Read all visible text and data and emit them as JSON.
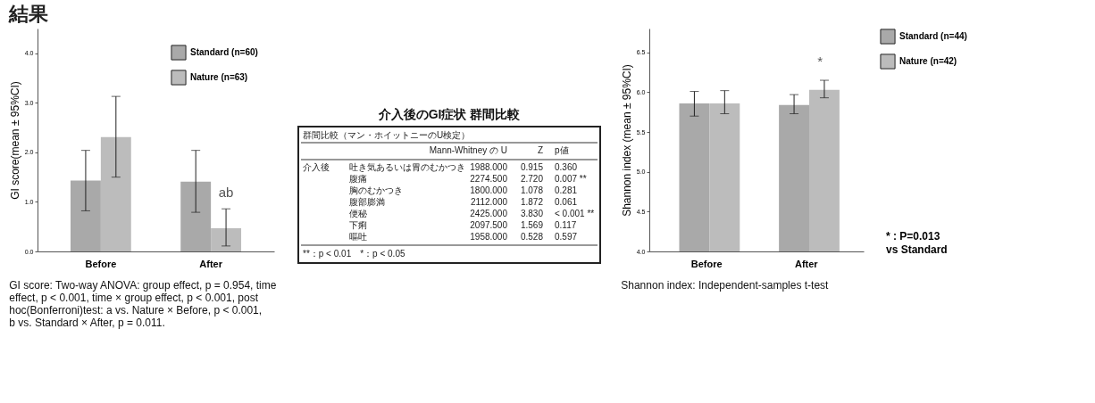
{
  "chart_data": [
    {
      "type": "bar",
      "title": "結果",
      "ylabel": "GI score(mean ± 95%CI)",
      "categories": [
        "Before",
        "After"
      ],
      "series": [
        {
          "name": "Standard (n=60)",
          "color": "#a9a9a9",
          "values": [
            1.43,
            1.41
          ],
          "errors": [
            [
              0.82,
              2.04
            ],
            [
              0.79,
              2.04
            ]
          ]
        },
        {
          "name": "Nature (n=63)",
          "color": "#bcbcbc",
          "values": [
            2.31,
            0.47
          ],
          "errors": [
            [
              1.5,
              3.13
            ],
            [
              0.11,
              0.86
            ]
          ]
        }
      ],
      "ylim": [
        0,
        4.5
      ],
      "yticks": [
        {
          "value": 0,
          "label": "0.0"
        },
        {
          "value": 1,
          "label": "1.0"
        },
        {
          "value": 2,
          "label": "2.0"
        },
        {
          "value": 3,
          "label": "3.0"
        },
        {
          "value": 4,
          "label": "4.0"
        }
      ],
      "legend": "top right",
      "grid": false,
      "annotations": [
        {
          "text": "ab",
          "x": "After",
          "y": 0.86
        },
        "GI score: Two-way ANOVA: group effect, p = 0.954, time effect, p < 0.001, time × group effect, p < 0.001, post hoc(Bonferroni)test: a vs. Nature × Before, p < 0.001, b vs. Standard × After, p = 0.011."
      ]
    },
    {
      "type": "other",
      "title": "介入後のGI症状 群間比較",
      "annotations": [
        "群間比較（マン・ホイットニーのU検定）",
        "Mann-Whitney の U",
        "Z",
        "p値",
        "介入後",
        "吐き気あるいは胃のむかつき",
        "1988.000",
        "0.915",
        "0.360",
        "腹痛",
        "2274.500",
        "2.720",
        "0.007 **",
        "胸のむかつき",
        "1800.000",
        "1.078",
        "0.281",
        "腹部膨満",
        "2112.000",
        "1.872",
        "0.061",
        "便秘",
        "2425.000",
        "3.830",
        "< 0.001 **",
        "下痢",
        "2097.500",
        "1.569",
        "0.117",
        "嘔吐",
        "1958.000",
        "0.528",
        "0.597",
        "**：p < 0.01　*：p < 0.05"
      ]
    },
    {
      "type": "bar",
      "ylabel": "Shannon index (mean ± 95%CI)",
      "categories": [
        "Before",
        "After"
      ],
      "series": [
        {
          "name": "Standard (n=44)",
          "color": "#a9a9a9",
          "values": [
            5.86,
            5.84
          ],
          "errors": [
            [
              5.7,
              6.01
            ],
            [
              5.73,
              5.97
            ]
          ]
        },
        {
          "name": "Nature (n=42)",
          "color": "#bcbcbc",
          "values": [
            5.86,
            6.03
          ],
          "errors": [
            [
              5.73,
              6.02
            ],
            [
              5.93,
              6.15
            ]
          ]
        }
      ],
      "ylim": [
        4.0,
        6.8
      ],
      "yticks": [
        {
          "value": 4.0,
          "label": "4.0"
        },
        {
          "value": 4.5,
          "label": "4.5"
        },
        {
          "value": 5.0,
          "label": "5.0"
        },
        {
          "value": 5.5,
          "label": "5.5"
        },
        {
          "value": 6.0,
          "label": "6.0"
        },
        {
          "value": 6.5,
          "label": "6.5"
        }
      ],
      "legend": "right",
      "grid": false,
      "annotations": [
        {
          "text": "*",
          "x": "After",
          "y": 6.03
        },
        "* : P=0.013 vs Standard",
        "Shannon index: Independent-samples t-test"
      ]
    }
  ]
}
